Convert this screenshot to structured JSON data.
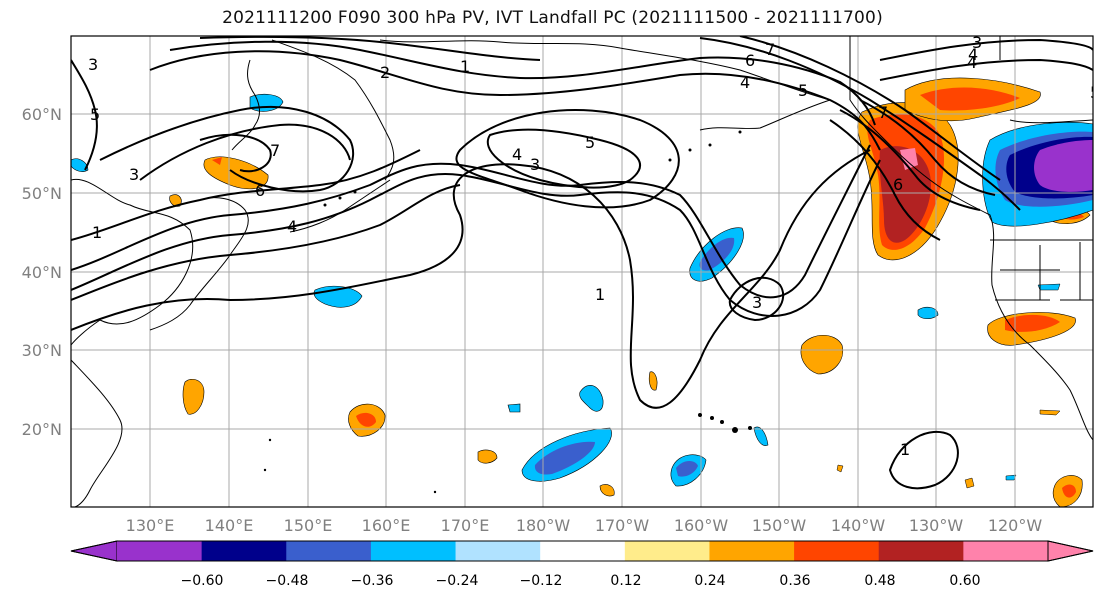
{
  "title": "2021111200 F090 300 hPa PV, IVT Landfall PC (2021111500 - 2021111700)",
  "map": {
    "lat_labels": [
      "60°N",
      "50°N",
      "40°N",
      "30°N",
      "20°N"
    ],
    "lon_labels": [
      "130°E",
      "140°E",
      "150°E",
      "160°E",
      "170°E",
      "180°W",
      "170°W",
      "160°W",
      "150°W",
      "140°W",
      "130°W",
      "120°W"
    ],
    "contour_labels": [
      "1",
      "2",
      "3",
      "4",
      "5",
      "6",
      "7",
      "5",
      "4",
      "1",
      "1",
      "3",
      "6",
      "5",
      "4",
      "3",
      "7",
      "6",
      "4",
      "5",
      "1",
      "7",
      "3",
      "4",
      "3"
    ]
  },
  "colorbar": {
    "colors": [
      "#9932cc",
      "#00008b",
      "#3a5fcd",
      "#00bfff",
      "#b0e2ff",
      "#ffffff",
      "#ffec8b",
      "#ffa500",
      "#ff4500",
      "#b22222",
      "#ff82ab",
      "#ff82ab"
    ],
    "tick_labels": [
      "−0.60",
      "−0.48",
      "−0.36",
      "−0.24",
      "−0.12",
      "0.12",
      "0.24",
      "0.36",
      "0.48",
      "0.60"
    ]
  }
}
